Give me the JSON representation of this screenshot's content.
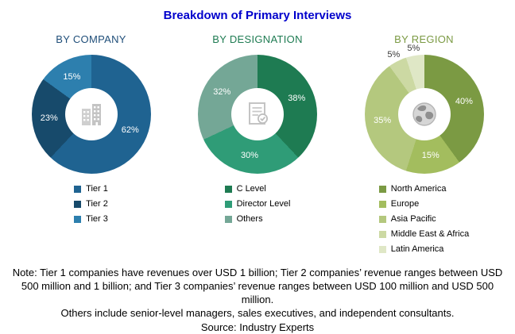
{
  "title": "Breakdown of Primary Interviews",
  "title_color": "#0000CC",
  "chart_data": [
    {
      "type": "pie",
      "donut": true,
      "title": "BY COMPANY",
      "title_color": "#1F4E79",
      "center_icon": "buildings-icon",
      "legend_position": "bottom",
      "segments": [
        {
          "label": "Tier 1",
          "value": 62,
          "color": "#1F6391"
        },
        {
          "label": "Tier 2",
          "value": 23,
          "color": "#174A6B"
        },
        {
          "label": "Tier 3",
          "value": 15,
          "color": "#2D7FAE"
        }
      ]
    },
    {
      "type": "pie",
      "donut": true,
      "title": "BY DESIGNATION",
      "title_color": "#1E7B52",
      "center_icon": "document-check-icon",
      "legend_position": "bottom",
      "segments": [
        {
          "label": "C Level",
          "value": 38,
          "color": "#1E7B52"
        },
        {
          "label": "Director Level",
          "value": 30,
          "color": "#2F9C77"
        },
        {
          "label": "Others",
          "value": 32,
          "color": "#74A796"
        }
      ]
    },
    {
      "type": "pie",
      "donut": true,
      "title": "BY REGION",
      "title_color": "#7B9A43",
      "center_icon": "globe-icon",
      "legend_position": "bottom",
      "segments": [
        {
          "label": "North America",
          "value": 40,
          "color": "#7B9A43"
        },
        {
          "label": "Europe",
          "value": 15,
          "color": "#A3BD5E"
        },
        {
          "label": "Asia Pacific",
          "value": 35,
          "color": "#B4C87E"
        },
        {
          "label": "Middle East & Africa",
          "value": 5,
          "color": "#CCD9A3"
        },
        {
          "label": "Latin America",
          "value": 5,
          "color": "#DFE7C6"
        }
      ]
    }
  ],
  "notes": {
    "note": "Note: Tier 1 companies have revenues over USD 1 billion; Tier 2 companies’ revenue ranges between USD 500 million and 1 billion; and Tier 3 companies’ revenue ranges between USD 100 million and USD 500 million.",
    "others": "Others include senior-level managers, sales executives, and independent consultants.",
    "source": "Source: Industry Experts"
  }
}
